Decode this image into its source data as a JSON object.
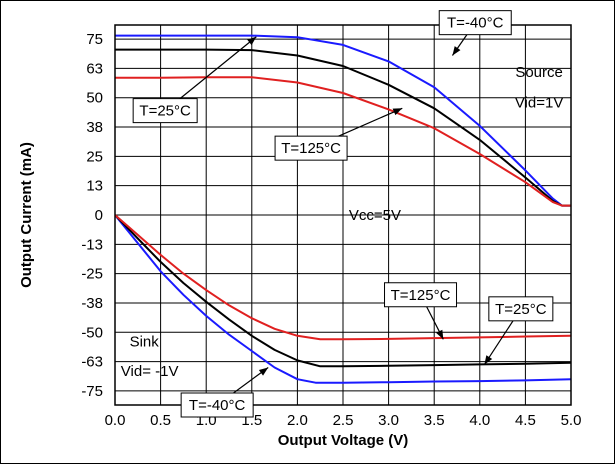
{
  "chart_data": {
    "type": "line",
    "xlabel": "Output Voltage (V)",
    "ylabel": "Output Current (mA)",
    "xlim": [
      0,
      5
    ],
    "ylim": [
      -81,
      81
    ],
    "x_ticks": [
      "0.0",
      "0.5",
      "1.0",
      "1.5",
      "2.0",
      "2.5",
      "3.0",
      "3.5",
      "4.0",
      "4.5",
      "5.0"
    ],
    "x_tick_values": [
      0,
      0.5,
      1,
      1.5,
      2,
      2.5,
      3,
      3.5,
      4,
      4.5,
      5
    ],
    "y_ticks": [
      "75",
      "63",
      "50",
      "38",
      "25",
      "13",
      "0",
      "-13",
      "-25",
      "-38",
      "-50",
      "-63",
      "-75"
    ],
    "y_tick_values": [
      75,
      62.5,
      50,
      37.5,
      25,
      12.5,
      0,
      -12.5,
      -25,
      -37.5,
      -50,
      -62.5,
      -75
    ],
    "grid": true,
    "series": [
      {
        "color": "#1a1aff",
        "points": [
          [
            0,
            76.5
          ],
          [
            0.5,
            76.5
          ],
          [
            1.0,
            76.5
          ],
          [
            1.5,
            76.5
          ],
          [
            2.0,
            75.8
          ],
          [
            2.5,
            72.5
          ],
          [
            3.0,
            65.5
          ],
          [
            3.5,
            54.5
          ],
          [
            4.0,
            38
          ],
          [
            4.5,
            19
          ],
          [
            4.8,
            7
          ],
          [
            4.9,
            4
          ],
          [
            5.0,
            4
          ]
        ]
      },
      {
        "color": "#000000",
        "points": [
          [
            0,
            70.5
          ],
          [
            0.5,
            70.5
          ],
          [
            1.0,
            70.5
          ],
          [
            1.5,
            70.3
          ],
          [
            2.0,
            68
          ],
          [
            2.5,
            63.5
          ],
          [
            3.0,
            55.5
          ],
          [
            3.5,
            45.5
          ],
          [
            4.0,
            32
          ],
          [
            4.5,
            16
          ],
          [
            4.8,
            6
          ],
          [
            4.9,
            4
          ],
          [
            5.0,
            4
          ]
        ]
      },
      {
        "color": "#e02020",
        "points": [
          [
            0,
            58.5
          ],
          [
            0.5,
            58.5
          ],
          [
            1.0,
            58.7
          ],
          [
            1.5,
            58.7
          ],
          [
            2.0,
            56.5
          ],
          [
            2.5,
            52
          ],
          [
            3.0,
            45
          ],
          [
            3.5,
            37
          ],
          [
            4.0,
            26
          ],
          [
            4.5,
            14
          ],
          [
            4.8,
            5.5
          ],
          [
            4.9,
            4
          ],
          [
            5.0,
            4
          ]
        ]
      },
      {
        "color": "#1a1aff",
        "points": [
          [
            0,
            0
          ],
          [
            0.25,
            -12
          ],
          [
            0.5,
            -24
          ],
          [
            0.75,
            -34
          ],
          [
            1.0,
            -43
          ],
          [
            1.25,
            -51
          ],
          [
            1.5,
            -58
          ],
          [
            1.75,
            -65
          ],
          [
            2.0,
            -70
          ],
          [
            2.2,
            -71.5
          ],
          [
            2.5,
            -71.5
          ],
          [
            3.0,
            -71.3
          ],
          [
            3.5,
            -71
          ],
          [
            4.0,
            -70.8
          ],
          [
            4.5,
            -70.5
          ],
          [
            5.0,
            -70
          ]
        ]
      },
      {
        "color": "#000000",
        "points": [
          [
            0,
            0
          ],
          [
            0.25,
            -10
          ],
          [
            0.5,
            -20
          ],
          [
            0.75,
            -29
          ],
          [
            1.0,
            -37
          ],
          [
            1.25,
            -44.5
          ],
          [
            1.5,
            -51.5
          ],
          [
            1.75,
            -57.5
          ],
          [
            2.0,
            -62
          ],
          [
            2.25,
            -64.5
          ],
          [
            2.5,
            -64.5
          ],
          [
            3.0,
            -64.3
          ],
          [
            3.5,
            -64
          ],
          [
            4.0,
            -63.7
          ],
          [
            4.5,
            -63.4
          ],
          [
            5.0,
            -63
          ]
        ]
      },
      {
        "color": "#e02020",
        "points": [
          [
            0,
            0
          ],
          [
            0.25,
            -8.5
          ],
          [
            0.5,
            -17
          ],
          [
            0.75,
            -25
          ],
          [
            1.0,
            -32
          ],
          [
            1.25,
            -38.5
          ],
          [
            1.5,
            -44
          ],
          [
            1.75,
            -48.5
          ],
          [
            2.0,
            -51.5
          ],
          [
            2.25,
            -53
          ],
          [
            2.5,
            -53
          ],
          [
            3.0,
            -52.8
          ],
          [
            3.5,
            -52.5
          ],
          [
            4.0,
            -52.2
          ],
          [
            4.5,
            -51.8
          ],
          [
            5.0,
            -51.5
          ]
        ]
      }
    ],
    "annotations": [
      {
        "text": "T=-40°C",
        "box": [
          3.95,
          82
        ],
        "tip": [
          3.7,
          68
        ]
      },
      {
        "text": "Source",
        "box": [
          4.65,
          61
        ],
        "tip": null
      },
      {
        "text": "Vid=1V",
        "box": [
          4.65,
          48
        ],
        "tip": null
      },
      {
        "text": "T=25°C",
        "box": [
          0.55,
          44.5
        ],
        "tip": [
          1.55,
          76
        ]
      },
      {
        "text": "T=125°C",
        "box": [
          2.15,
          28.5
        ],
        "tip": [
          3.15,
          45.5
        ]
      },
      {
        "text": "Vcc=5V",
        "box": [
          2.85,
          0
        ],
        "tip": null
      },
      {
        "text": "T=125°C",
        "box": [
          3.35,
          -34
        ],
        "tip": [
          3.6,
          -53
        ]
      },
      {
        "text": "T=25°C",
        "box": [
          4.45,
          -40
        ],
        "tip": [
          4.05,
          -63.8
        ]
      },
      {
        "text": "Sink",
        "box": [
          0.32,
          -54
        ],
        "tip": null
      },
      {
        "text": "Vid= -1V",
        "box": [
          0.38,
          -66.5
        ],
        "tip": null
      },
      {
        "text": "T=-40°C",
        "box": [
          1.12,
          -81
        ],
        "tip": [
          1.68,
          -65
        ]
      }
    ]
  }
}
